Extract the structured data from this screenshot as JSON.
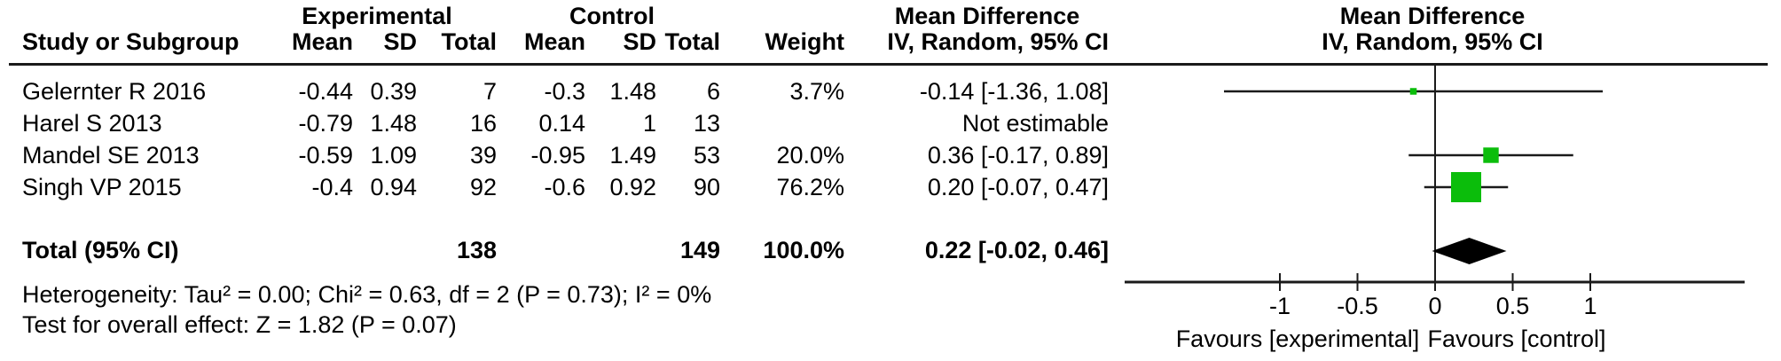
{
  "table": {
    "group_headers": {
      "experimental": "Experimental",
      "control": "Control",
      "mean_difference": "Mean Difference"
    },
    "column_headers": {
      "study": "Study or Subgroup",
      "exp_mean": "Mean",
      "exp_sd": "SD",
      "exp_total": "Total",
      "ctrl_mean": "Mean",
      "ctrl_sd": "SD",
      "ctrl_total": "Total",
      "weight": "Weight",
      "ci": "IV, Random, 95% CI"
    },
    "plot_header": {
      "title": "Mean Difference",
      "subtitle": "IV, Random, 95% CI"
    },
    "rows": [
      {
        "study": "Gelernter R 2016",
        "exp_mean": "-0.44",
        "exp_sd": "0.39",
        "exp_total": "7",
        "ctrl_mean": "-0.3",
        "ctrl_sd": "1.48",
        "ctrl_total": "6",
        "weight": "3.7%",
        "ci": "-0.14 [-1.36, 1.08]"
      },
      {
        "study": "Harel S 2013",
        "exp_mean": "-0.79",
        "exp_sd": "1.48",
        "exp_total": "16",
        "ctrl_mean": "0.14",
        "ctrl_sd": "1",
        "ctrl_total": "13",
        "weight": "",
        "ci": "Not estimable"
      },
      {
        "study": "Mandel SE 2013",
        "exp_mean": "-0.59",
        "exp_sd": "1.09",
        "exp_total": "39",
        "ctrl_mean": "-0.95",
        "ctrl_sd": "1.49",
        "ctrl_total": "53",
        "weight": "20.0%",
        "ci": "0.36 [-0.17, 0.89]"
      },
      {
        "study": "Singh VP 2015",
        "exp_mean": "-0.4",
        "exp_sd": "0.94",
        "exp_total": "92",
        "ctrl_mean": "-0.6",
        "ctrl_sd": "0.92",
        "ctrl_total": "90",
        "weight": "76.2%",
        "ci": "0.20 [-0.07, 0.47]"
      }
    ],
    "total_row": {
      "label": "Total (95% CI)",
      "exp_total": "138",
      "ctrl_total": "149",
      "weight": "100.0%",
      "ci": "0.22 [-0.02, 0.46]"
    },
    "footnotes": {
      "heterogeneity": "Heterogeneity: Tau² = 0.00; Chi² = 0.63, df = 2 (P = 0.73); I² = 0%",
      "overall_effect": "Test for overall effect: Z = 1.82 (P = 0.07)"
    }
  },
  "chart_data": {
    "type": "forest",
    "effect_measure": "Mean Difference",
    "model": "IV, Random, 95% CI",
    "axis": {
      "min": -2,
      "max": 2,
      "ticks": [
        -1,
        -0.5,
        0,
        0.5,
        1
      ],
      "tick_labels": [
        "-1",
        "-0.5",
        "0",
        "0.5",
        "1"
      ],
      "left_label": "Favours [experimental]",
      "right_label": "Favours [control]"
    },
    "studies": [
      {
        "name": "Gelernter R 2016",
        "estimate": -0.14,
        "ci_lower": -1.36,
        "ci_upper": 1.08,
        "weight_pct": 3.7,
        "not_estimable": false
      },
      {
        "name": "Harel S 2013",
        "estimate": null,
        "ci_lower": null,
        "ci_upper": null,
        "weight_pct": null,
        "not_estimable": true
      },
      {
        "name": "Mandel SE 2013",
        "estimate": 0.36,
        "ci_lower": -0.17,
        "ci_upper": 0.89,
        "weight_pct": 20.0,
        "not_estimable": false
      },
      {
        "name": "Singh VP 2015",
        "estimate": 0.2,
        "ci_lower": -0.07,
        "ci_upper": 0.47,
        "weight_pct": 76.2,
        "not_estimable": false
      }
    ],
    "total": {
      "estimate": 0.22,
      "ci_lower": -0.02,
      "ci_upper": 0.46
    },
    "colors": {
      "marker_green": "#0bbd0b",
      "diamond_black": "#000000",
      "line_black": "#1a1a1a"
    }
  }
}
